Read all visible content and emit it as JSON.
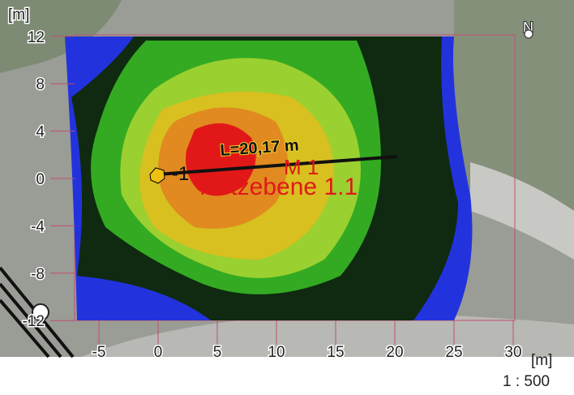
{
  "axes": {
    "x_unit": "[m]",
    "y_unit": "[m]",
    "xlim": [
      -7,
      31
    ],
    "ylim": [
      -13,
      12.5
    ],
    "xticks": [
      -5,
      0,
      5,
      10,
      15,
      20,
      25,
      30
    ],
    "yticks": [
      12,
      8,
      4,
      0,
      -4,
      -8,
      -12
    ]
  },
  "north": "N",
  "measure": "L=20,17 m",
  "source": {
    "id": "-1",
    "marker": "M 1",
    "plane": "Netzebene 1.1"
  },
  "scale": "1 : 500"
}
